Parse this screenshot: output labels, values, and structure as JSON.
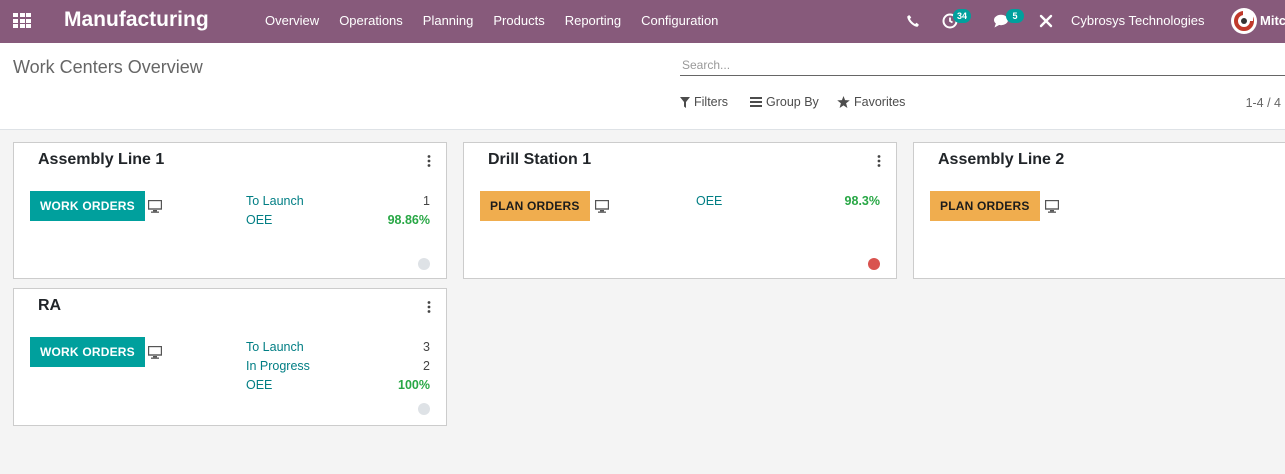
{
  "navbar": {
    "app_title": "Manufacturing",
    "menu": [
      {
        "label": "Overview"
      },
      {
        "label": "Operations"
      },
      {
        "label": "Planning"
      },
      {
        "label": "Products"
      },
      {
        "label": "Reporting"
      },
      {
        "label": "Configuration"
      }
    ],
    "activity_count": "34",
    "message_count": "5",
    "company": "Cybrosys Technologies",
    "user": "Mitc",
    "color": "#875a7b"
  },
  "control_panel": {
    "title": "Work Centers Overview",
    "search_placeholder": "Search...",
    "filters_label": "Filters",
    "group_by_label": "Group By",
    "favorites_label": "Favorites",
    "pager": "1-4 / 4"
  },
  "cards": [
    {
      "name": "Assembly Line 1",
      "button": "WORK ORDERS",
      "stats": [
        {
          "label": "To Launch",
          "value": "1"
        },
        {
          "label": "OEE",
          "value": "98.86%"
        }
      ],
      "status": "idle"
    },
    {
      "name": "Drill Station 1",
      "button": "PLAN ORDERS",
      "stats": [
        {
          "label": "OEE",
          "value": "98.3%"
        }
      ],
      "status": "blocked"
    },
    {
      "name": "Assembly Line 2",
      "button": "PLAN ORDERS",
      "stats": [],
      "status": ""
    },
    {
      "name": "RA",
      "button": "WORK ORDERS",
      "stats": [
        {
          "label": "To Launch",
          "value": "3"
        },
        {
          "label": "In Progress",
          "value": "2"
        },
        {
          "label": "OEE",
          "value": "100%"
        }
      ],
      "status": "idle"
    }
  ],
  "colors": {
    "teal": "#00a09d",
    "orange": "#f0ad4e",
    "status_idle": "#dee2e6",
    "status_blocked": "#d9534f"
  }
}
